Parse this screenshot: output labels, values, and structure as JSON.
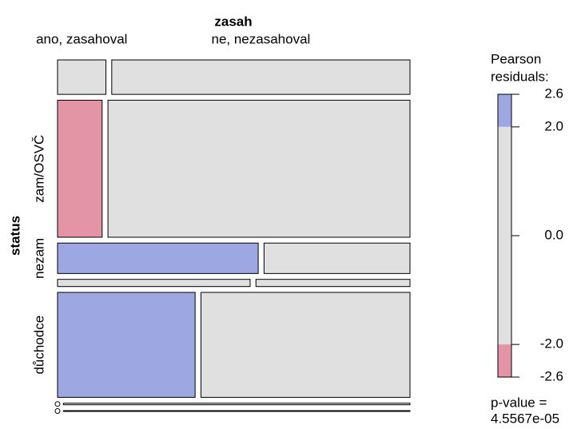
{
  "chart_data": {
    "type": "mosaic",
    "title": "zasah",
    "row_axis_label": "status",
    "columns": [
      "ano, zasahoval",
      "ne, nezasahoval"
    ],
    "rows": [
      null,
      "zam/OSVČ",
      "nezam",
      null,
      "důchodce",
      null,
      null
    ],
    "values": [
      [
        6,
        37
      ],
      [
        22,
        149
      ],
      [
        22,
        16
      ],
      [
        5,
        4
      ],
      [
        52,
        79
      ],
      [
        0,
        2
      ],
      [
        0,
        1
      ]
    ],
    "fills": [
      [
        "#e0e0e0",
        "#e0e0e0"
      ],
      [
        "#e495a5",
        "#e0e0e0"
      ],
      [
        "#9da8e2",
        "#e0e0e0"
      ],
      [
        "#e0e0e0",
        "#e0e0e0"
      ],
      [
        "#9da8e2",
        "#e0e0e0"
      ],
      [
        "#e0e0e0",
        "#e0e0e0"
      ],
      [
        "#e0e0e0",
        "#e0e0e0"
      ]
    ],
    "legend": {
      "title": [
        "Pearson",
        "residuals:"
      ],
      "ylim": [
        -2.6,
        2.6
      ],
      "ticks": [
        2.6,
        {
          "value": 2,
          "label": "2.0"
        },
        {
          "value": 0,
          "label": "0.0"
        },
        {
          "value": -2,
          "label": "-2.0"
        },
        -2.6
      ],
      "bands": [
        {
          "from": 2,
          "to": 2.6,
          "color": "#9da8e2"
        },
        {
          "from": -2,
          "to": 2,
          "color": "#e0e0e0"
        },
        {
          "from": -2.6,
          "to": -2,
          "color": "#e495a5"
        }
      ]
    },
    "p_value_prefix": "p-value =",
    "p_value": "4.5567e-05"
  }
}
